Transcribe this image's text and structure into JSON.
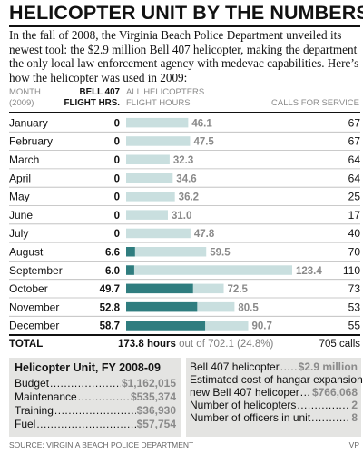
{
  "title": "HELICOPTER UNIT BY THE NUMBERS",
  "intro": "In the fall of 2008, the Virginia Beach Police Department unveiled its newest tool: the $2.9 million Bell 407 helicopter, making the department the only local law enforcement agency with medevac capabilities. Here’s how the helicopter was used in 2009:",
  "headers": {
    "month_line1": "MONTH",
    "month_line2": "(2009)",
    "bell_line1": "BELL 407",
    "bell_line2": "FLIGHT HRS.",
    "all_line1": "ALL HELICOPTERS",
    "all_line2": "FLIGHT HOURS",
    "calls": "CALLS FOR SERVICE"
  },
  "chart_data": {
    "type": "bar",
    "categories": [
      "January",
      "February",
      "March",
      "April",
      "May",
      "June",
      "July",
      "August",
      "September",
      "October",
      "November",
      "December"
    ],
    "series": [
      {
        "name": "ALL HELICOPTERS FLIGHT HOURS",
        "values": [
          46.1,
          47.5,
          32.3,
          34.6,
          36.2,
          31.0,
          47.8,
          59.5,
          123.4,
          72.5,
          80.5,
          90.7
        ],
        "labels": [
          "46.1",
          "47.5",
          "32.3",
          "34.6",
          "36.2",
          "31.0",
          "47.8",
          "59.5",
          "123.4",
          "72.5",
          "80.5",
          "90.7"
        ]
      },
      {
        "name": "BELL 407 FLIGHT HRS.",
        "values": [
          0,
          0,
          0,
          0,
          0,
          0,
          0,
          6.6,
          6.0,
          49.7,
          52.8,
          58.7
        ],
        "labels": [
          "0",
          "0",
          "0",
          "0",
          "0",
          "0",
          "0",
          "6.6",
          "6.0",
          "49.7",
          "52.8",
          "58.7"
        ]
      }
    ],
    "calls_for_service": [
      67,
      67,
      64,
      64,
      25,
      17,
      40,
      70,
      110,
      73,
      53,
      55
    ],
    "xlim": [
      0,
      124
    ],
    "colors": {
      "all_helicopters": "#c9dfdf",
      "bell_407": "#2f7d7f",
      "label_gray": "#8a8a8a"
    }
  },
  "total": {
    "label": "TOTAL",
    "hours": "173.8 hours",
    "out_of": "out of 702.1 (24.8%)",
    "calls": "705 calls"
  },
  "budget_box": {
    "title": "Helicopter Unit, FY 2008-09",
    "items": [
      {
        "label": "Budget",
        "value": "$1,162,015"
      },
      {
        "label": "Maintenance",
        "value": "$535,374"
      },
      {
        "label": "Training",
        "value": "$36,930"
      },
      {
        "label": "Fuel",
        "value": "$57,754"
      }
    ]
  },
  "facts_box": {
    "bell_label": "Bell 407 helicopter",
    "bell_value": "$2.9 million",
    "hangar_line1": "Estimated cost of hangar expansion for",
    "hangar_line2": "new Bell 407 helicoper",
    "hangar_value": "$766,068",
    "helicopters_label": "Number of helicopters",
    "helicopters_value": "2",
    "officers_label": "Number of officers in unit",
    "officers_value": "8"
  },
  "source": "SOURCE: Virginia Beach Police Department",
  "credit": "VP"
}
